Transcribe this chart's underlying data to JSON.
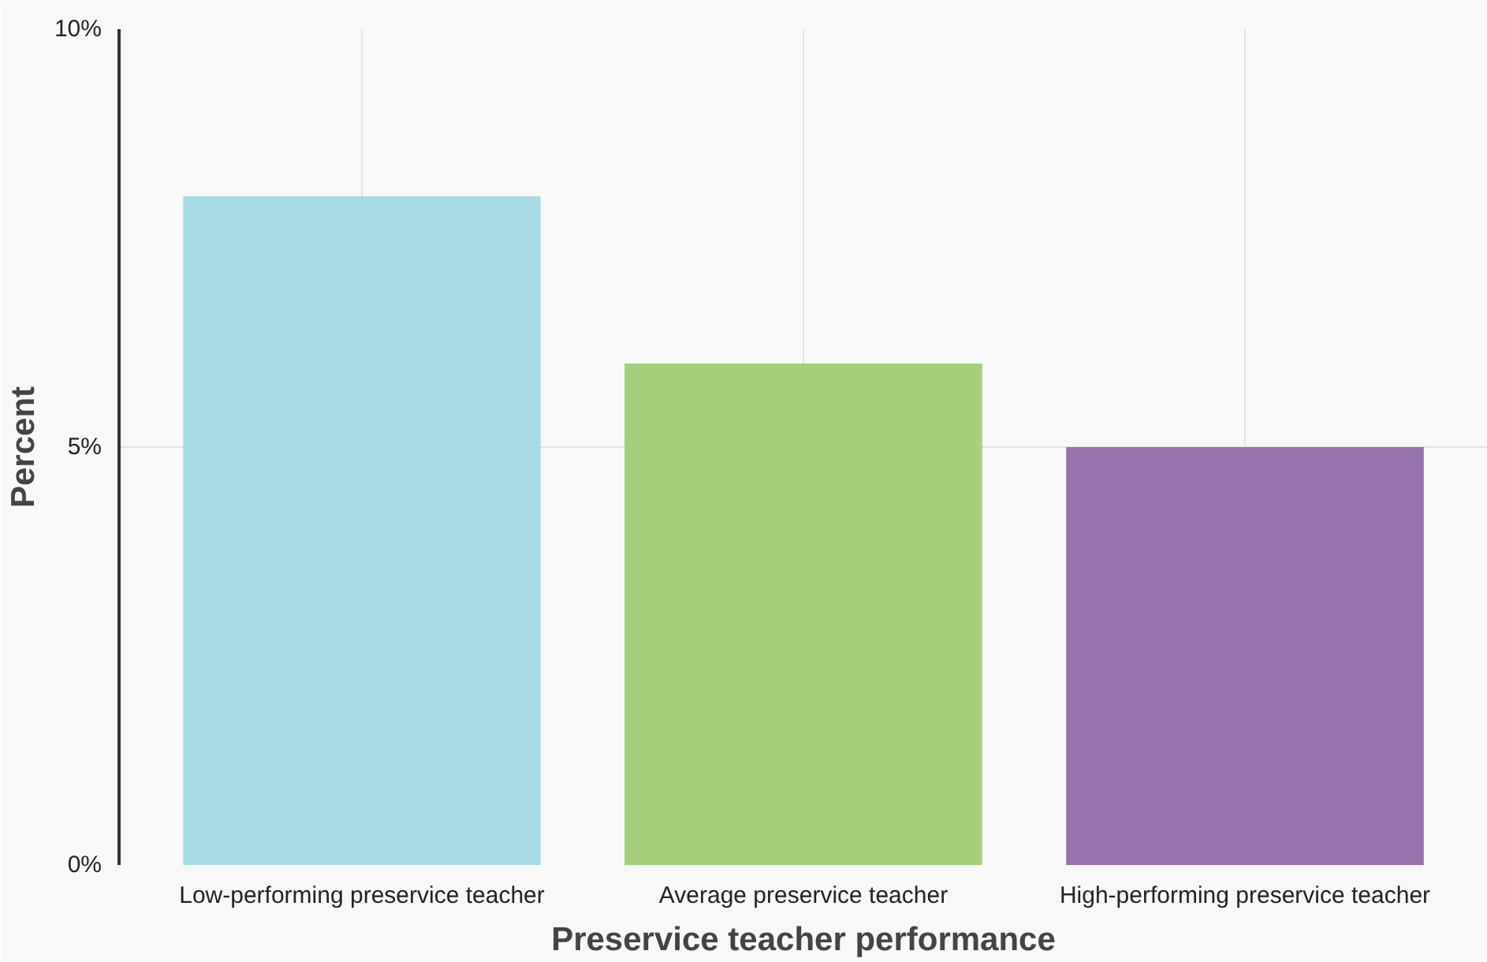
{
  "chart_data": {
    "type": "bar",
    "xlabel": "Preservice teacher performance",
    "ylabel": "Percent",
    "categories": [
      "Low-performing preservice teacher",
      "Average preservice teacher",
      "High-performing preservice teacher"
    ],
    "values": [
      8,
      6,
      5
    ],
    "colors": [
      "#a2dae6",
      "#9fcd72",
      "#916aa8"
    ],
    "ylim": [
      0,
      10
    ],
    "yticks": [
      {
        "value": 0,
        "label": "0%"
      },
      {
        "value": 5,
        "label": "5%"
      },
      {
        "value": 10,
        "label": "10%"
      }
    ],
    "grid": true
  }
}
